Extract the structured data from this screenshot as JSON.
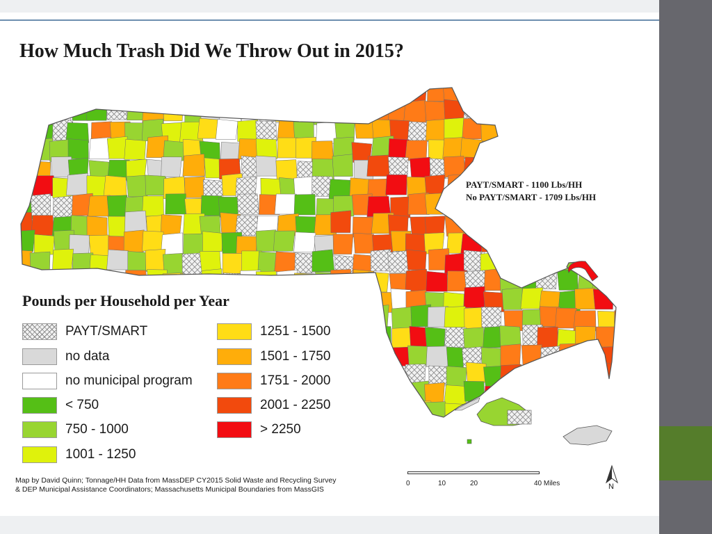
{
  "title": "How Much Trash Did We Throw Out in 2015?",
  "stats": [
    "PAYT/SMART - 1100 Lbs/HH",
    "No PAYT/SMART - 1709 Lbs/HH"
  ],
  "legend": {
    "title": "Pounds per Household per Year",
    "items": [
      {
        "label": "PAYT/SMART",
        "color": "#f2f2f2",
        "pattern": "hatch"
      },
      {
        "label": "no data",
        "color": "#d9d9d9"
      },
      {
        "label": "no municipal program",
        "color": "#ffffff"
      },
      {
        "label": "< 750",
        "color": "#55bf16"
      },
      {
        "label": "750 - 1000",
        "color": "#98d531"
      },
      {
        "label": "1001 - 1250",
        "color": "#dff20c"
      },
      {
        "label": "1251 - 1500",
        "color": "#ffdd16"
      },
      {
        "label": "1501 - 1750",
        "color": "#ffad0a"
      },
      {
        "label": "1751 - 2000",
        "color": "#ff7b17"
      },
      {
        "label": "2001 - 2250",
        "color": "#f24a0d"
      },
      {
        "label": "> 2250",
        "color": "#f20d12"
      }
    ]
  },
  "credits": [
    "Map by David Quinn; Tonnage/HH Data from MassDEP CY2015 Solid Waste and Recycling Survey",
    "& DEP Municipal Assistance Coordinators; Massachusetts Municipal Boundaries from MassGIS"
  ],
  "scale": {
    "ticks": [
      "0",
      "10",
      "20",
      "40 Miles"
    ],
    "tick_values": [
      0,
      10,
      20,
      40
    ]
  },
  "north_label": "N",
  "colors": {
    "side_bar": "#67676d",
    "side_accent": "#557d2b",
    "frame_rule": "#6d8fb0"
  }
}
